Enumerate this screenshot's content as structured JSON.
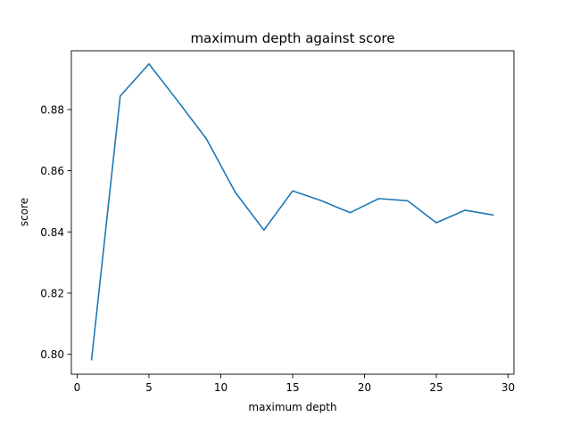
{
  "chart_data": {
    "type": "line",
    "title": "maximum depth against score",
    "xlabel": "maximum depth",
    "ylabel": "score",
    "xlim": [
      -0.4,
      30.4
    ],
    "ylim": [
      0.7935,
      0.8992
    ],
    "xticks": [
      0,
      5,
      10,
      15,
      20,
      25,
      30
    ],
    "yticks": [
      0.8,
      0.82,
      0.84,
      0.86,
      0.88
    ],
    "xtick_labels": [
      "0",
      "5",
      "10",
      "15",
      "20",
      "25",
      "30"
    ],
    "ytick_labels": [
      "0.80",
      "0.82",
      "0.84",
      "0.86",
      "0.88"
    ],
    "grid": false,
    "legend": "none",
    "series": [
      {
        "color": "#1f77b4",
        "x": [
          1,
          3,
          5,
          7,
          9,
          11,
          13,
          15,
          17,
          19,
          21,
          23,
          25,
          27,
          29
        ],
        "y": [
          0.798,
          0.8844,
          0.8949,
          0.8828,
          0.8704,
          0.853,
          0.8406,
          0.8534,
          0.8502,
          0.8463,
          0.8509,
          0.8502,
          0.843,
          0.8471,
          0.8455
        ]
      }
    ]
  }
}
